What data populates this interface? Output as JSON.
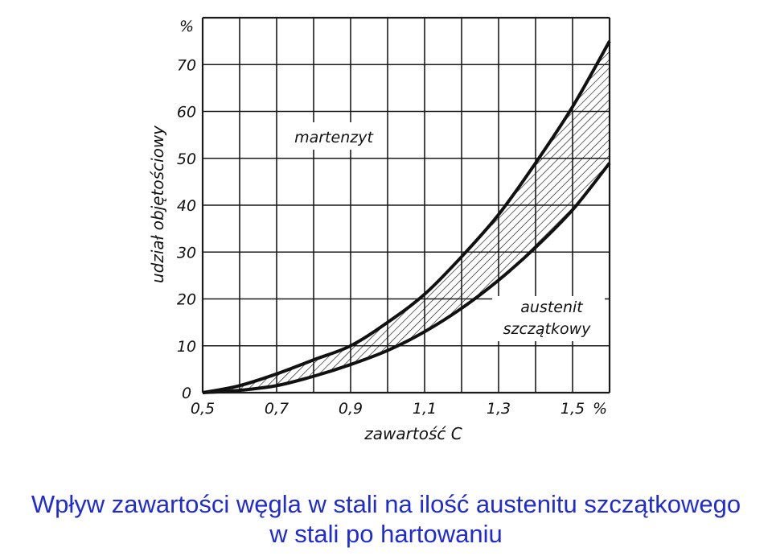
{
  "chart_data": {
    "type": "area",
    "xlabel": "zawartość C",
    "ylabel": "udział objętościowy",
    "x_unit": "%",
    "y_unit": "%",
    "xlim": [
      0.5,
      1.6
    ],
    "ylim": [
      0,
      80
    ],
    "x_ticks": [
      {
        "value": 0.5,
        "label": "0,5"
      },
      {
        "value": 0.7,
        "label": "0,7"
      },
      {
        "value": 0.9,
        "label": "0,9"
      },
      {
        "value": 1.1,
        "label": "1,1"
      },
      {
        "value": 1.3,
        "label": "1,3"
      },
      {
        "value": 1.5,
        "label": "1,5"
      }
    ],
    "y_ticks": [
      0,
      10,
      20,
      30,
      40,
      50,
      60,
      70
    ],
    "grid": true,
    "series": [
      {
        "x": [
          0.5,
          0.6,
          0.7,
          0.8,
          0.9,
          1.0,
          1.1,
          1.2,
          1.3,
          1.4,
          1.5,
          1.6
        ],
        "values": [
          0,
          1.5,
          4,
          7,
          10,
          15,
          21,
          29,
          38,
          49,
          61,
          75
        ]
      },
      {
        "x": [
          0.5,
          0.6,
          0.7,
          0.8,
          0.9,
          1.0,
          1.1,
          1.2,
          1.3,
          1.4,
          1.5,
          1.6
        ],
        "values": [
          0,
          0.5,
          1.5,
          3.5,
          6,
          9,
          13,
          18,
          24,
          31,
          39,
          49
        ]
      }
    ],
    "fill_between_hatched": true,
    "annotations": [
      {
        "text": "martenzyt",
        "position": "upper-left"
      },
      {
        "text": "austenit",
        "position": "lower-right"
      },
      {
        "text": "szczątkowy",
        "position": "lower-right"
      }
    ]
  },
  "caption": {
    "line1": "Wpływ zawartości węgla w stali na ilość austenitu szczątkowego",
    "line2": "w stali po hartowaniu"
  },
  "colors": {
    "caption": "#1f2bd6",
    "ink": "#111111"
  }
}
